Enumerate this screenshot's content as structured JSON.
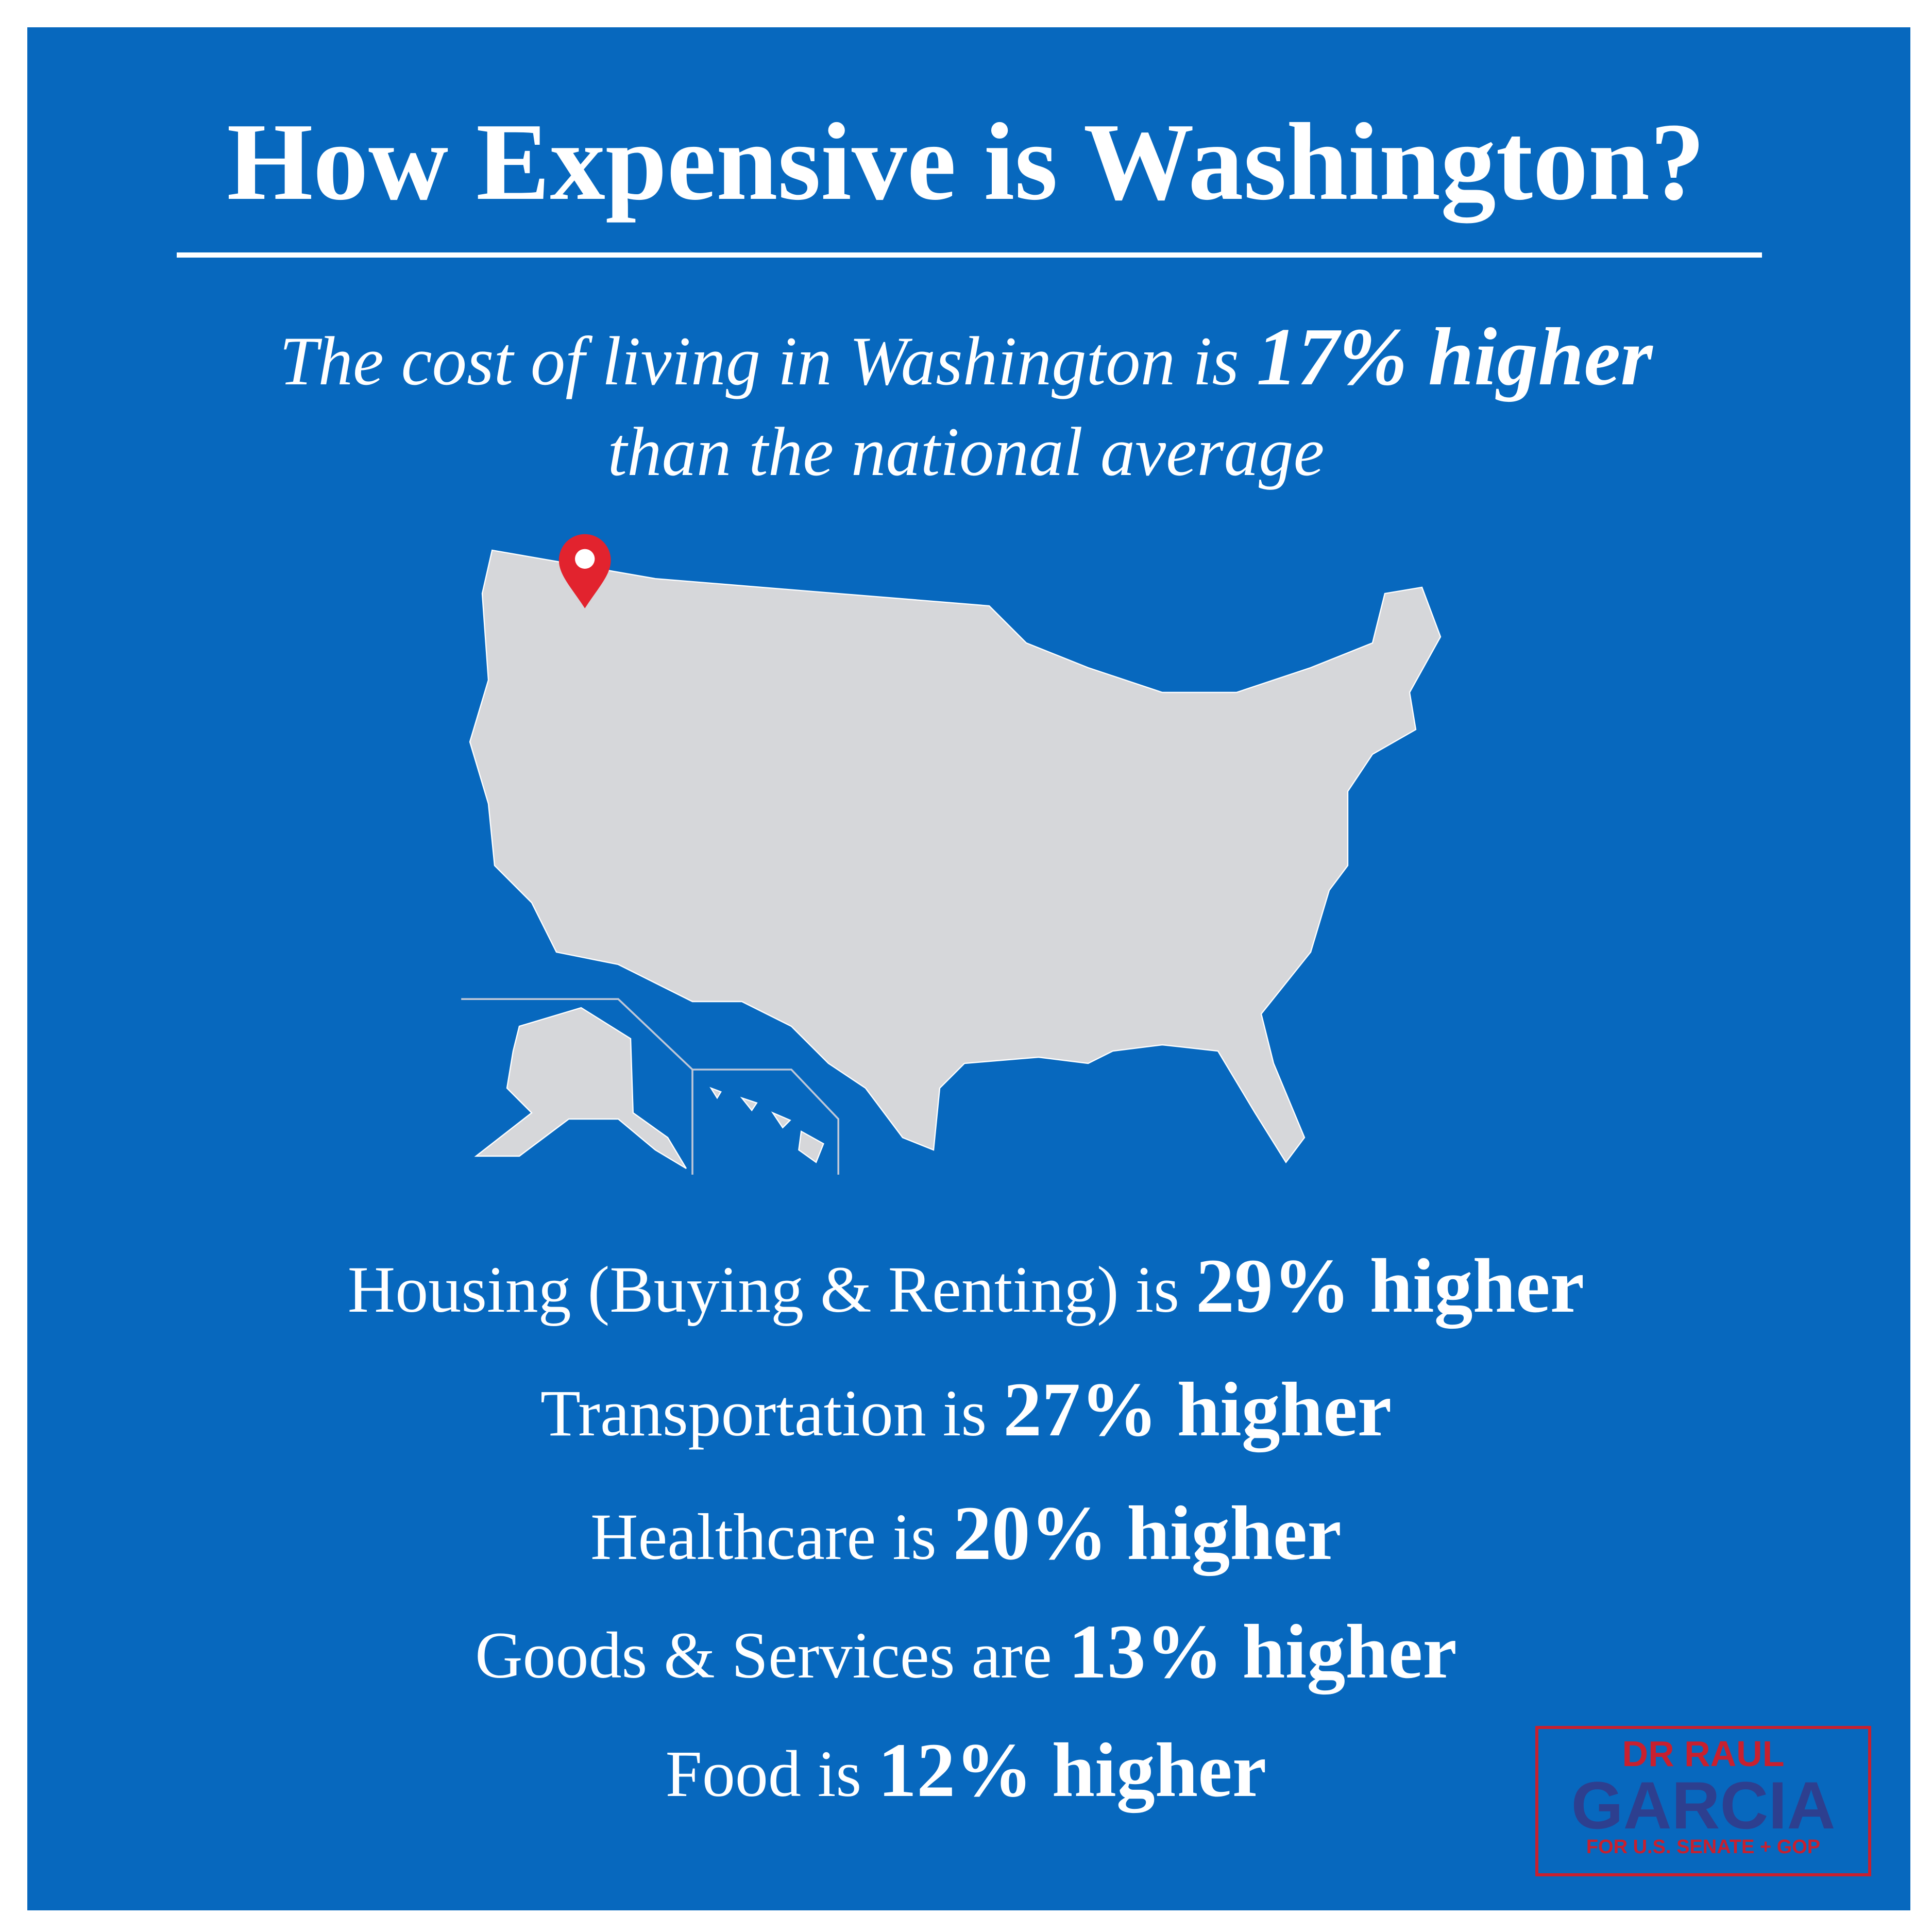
{
  "title": "How Expensive is Washington?",
  "subtitle": {
    "line1_text": "The cost of living in Washington is",
    "line1_bold": "17% higher",
    "line2": "than the national average"
  },
  "items": [
    {
      "text": "Housing (Buying & Renting) is",
      "bold": "29% higher"
    },
    {
      "text": "Transportation is",
      "bold": "27% higher"
    },
    {
      "text": "Healthcare is",
      "bold": "20% higher"
    },
    {
      "text": "Goods & Services are",
      "bold": "13% higher"
    },
    {
      "text": "Food is",
      "bold": "12% higher"
    }
  ],
  "logo": {
    "name_top": "DR RAUL",
    "name_main": "GARCIA",
    "tagline": "FOR U.S. SENATE + GOP"
  }
}
